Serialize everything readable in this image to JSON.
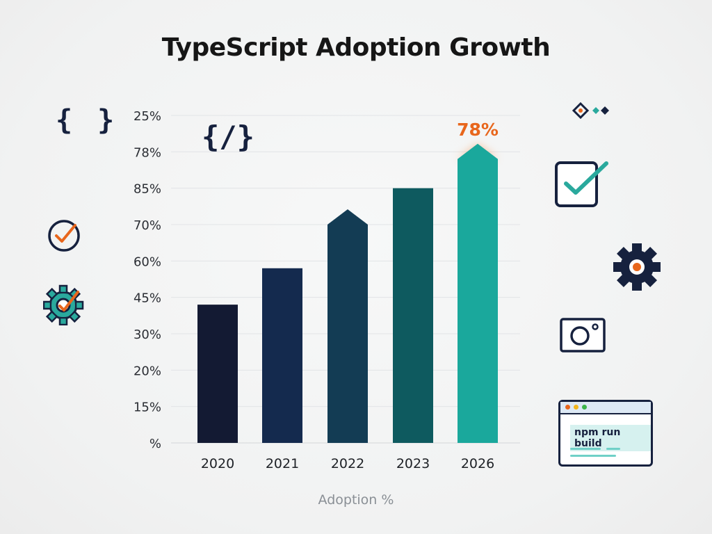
{
  "title": "TypeScript Adoption Growth",
  "x_axis_label": "Adoption %",
  "chart_data": {
    "type": "bar",
    "title": "TypeScript Adoption Growth",
    "xlabel": "Adoption %",
    "ylabel": "",
    "categories": [
      "2020",
      "2021",
      "2022",
      "2023",
      "2026"
    ],
    "values": [
      38,
      48,
      60,
      70,
      78
    ],
    "ytick_labels": [
      "%",
      "15%",
      "20%",
      "30%",
      "45%",
      "60%",
      "70%",
      "85%",
      "78%",
      "25%"
    ],
    "ylim": [
      0,
      90
    ],
    "grid": true,
    "annotations": [
      {
        "category": "2026",
        "text": "78%"
      }
    ],
    "colors": [
      "#131a33",
      "#142a4e",
      "#133c54",
      "#0e5a5f",
      "#1aa89c"
    ],
    "highlight_color": "#e8661c"
  },
  "decorations": {
    "code_braces_icon": "{ }",
    "code_slash_icon": "{/}",
    "terminal": {
      "command": "npm run build",
      "dot_colors": [
        "#e8661c",
        "#f2b51c",
        "#3cb54a"
      ]
    }
  }
}
